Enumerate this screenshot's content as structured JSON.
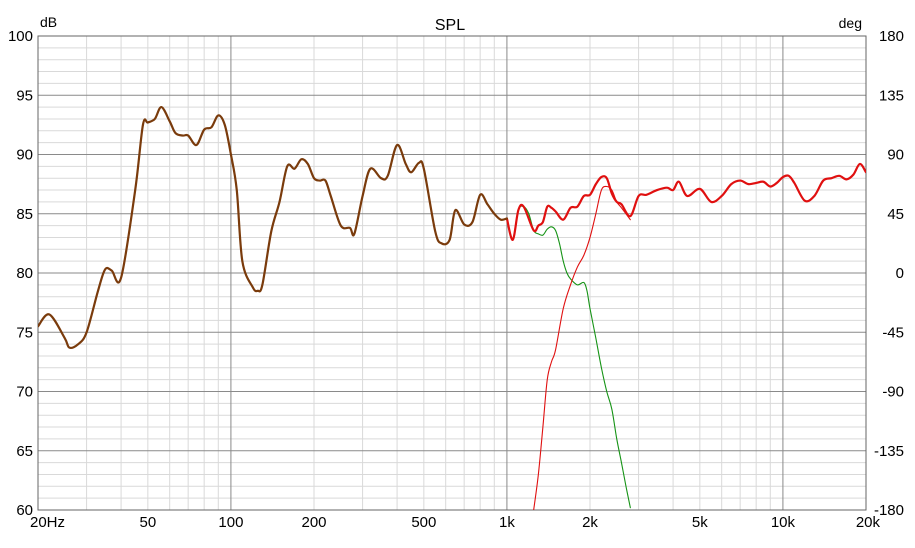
{
  "chart_data": {
    "type": "line",
    "title": "SPL",
    "ylabel_left": "dB",
    "ylabel_right": "deg",
    "x_scale": "log",
    "xlim": [
      20,
      20000
    ],
    "ylim": [
      60,
      100
    ],
    "ylim_right": [
      -180,
      180
    ],
    "grid": true,
    "x_ticks": [
      {
        "value": 20,
        "label": "20Hz"
      },
      {
        "value": 50,
        "label": "50"
      },
      {
        "value": 100,
        "label": "100"
      },
      {
        "value": 200,
        "label": "200"
      },
      {
        "value": 500,
        "label": "500"
      },
      {
        "value": 1000,
        "label": "1k"
      },
      {
        "value": 2000,
        "label": "2k"
      },
      {
        "value": 5000,
        "label": "5k"
      },
      {
        "value": 10000,
        "label": "10k"
      },
      {
        "value": 20000,
        "label": "20k"
      }
    ],
    "y_ticks_left": [
      "100",
      "95",
      "90",
      "85",
      "80",
      "75",
      "70",
      "65",
      "60"
    ],
    "y_ticks_right": [
      "180",
      "135",
      "90",
      "45",
      "0",
      "-45",
      "-90",
      "-135",
      "-180"
    ],
    "series": [
      {
        "color": "#7a3b0c",
        "x": [
          20,
          22,
          25,
          26,
          28,
          30,
          33,
          35,
          37,
          40,
          45,
          48,
          50,
          53,
          56,
          60,
          63,
          67,
          70,
          75,
          80,
          85,
          90,
          95,
          100,
          105,
          110,
          120,
          125,
          130,
          140,
          150,
          160,
          170,
          180,
          190,
          200,
          210,
          220,
          230,
          250,
          270,
          280,
          300,
          320,
          350,
          370,
          400,
          430,
          450,
          480,
          500,
          550,
          580,
          620,
          650,
          700,
          750,
          800,
          850,
          900,
          950,
          1000
        ],
        "y": [
          75.5,
          76.5,
          74.5,
          73.7,
          74,
          75,
          78.5,
          80.3,
          80.2,
          79.6,
          87,
          92.5,
          92.7,
          93,
          94,
          92.8,
          91.8,
          91.6,
          91.6,
          90.8,
          92.1,
          92.3,
          93.3,
          92.5,
          90,
          87,
          81,
          78.8,
          78.5,
          79,
          83.5,
          86,
          89,
          88.8,
          89.6,
          89.2,
          88,
          87.8,
          87.8,
          86.5,
          84,
          83.8,
          83.3,
          86.5,
          88.8,
          88,
          88.2,
          90.8,
          89.2,
          88.5,
          89.3,
          88.8,
          83.5,
          82.5,
          82.8,
          85.3,
          84.1,
          84.3,
          86.6,
          85.8,
          85,
          84.5,
          84.6
        ]
      },
      {
        "color": "#e01010",
        "x": [
          1000,
          1050,
          1100,
          1150,
          1250,
          1300,
          1350,
          1400,
          1450,
          1500,
          1600,
          1700,
          1800,
          1900,
          2000,
          2100,
          2200,
          2300,
          2400,
          2500,
          2600,
          2800,
          3000,
          3200,
          3500,
          3800,
          4000,
          4200,
          4500,
          5000,
          5500,
          6000,
          6500,
          7000,
          7500,
          8000,
          8500,
          9000,
          9500,
          10000,
          10500,
          11000,
          12000,
          13000,
          14000,
          15000,
          16000,
          17000,
          18000,
          19000,
          20000
        ],
        "y": [
          84.6,
          82.8,
          85.3,
          85.6,
          83.6,
          84,
          84.3,
          85.6,
          85.5,
          85.2,
          84.5,
          85.5,
          85.6,
          86.5,
          86.6,
          87.5,
          88.1,
          88,
          86.7,
          86,
          85.8,
          84.8,
          86.5,
          86.6,
          87,
          87.2,
          87,
          87.7,
          86.5,
          87.1,
          86,
          86.5,
          87.5,
          87.8,
          87.5,
          87.6,
          87.7,
          87.3,
          87.6,
          88.1,
          88.2,
          87.6,
          86.1,
          86.5,
          87.8,
          88,
          88.2,
          87.9,
          88.3,
          89.2,
          88.5
        ]
      },
      {
        "color": "#e01010",
        "x": [
          1250,
          1300,
          1350,
          1400,
          1450,
          1500,
          1600,
          1700,
          1800,
          1900,
          2000,
          2100,
          2200,
          2300,
          2400,
          2500,
          2600,
          2800
        ],
        "y": [
          60,
          63,
          67,
          71,
          72.5,
          73.5,
          77,
          79,
          80.5,
          81.5,
          83,
          85,
          87,
          87.3,
          87,
          86,
          85.5,
          84.5
        ]
      },
      {
        "color": "#159315",
        "x": [
          1000,
          1050,
          1100,
          1150,
          1200,
          1250,
          1300,
          1350,
          1400,
          1450,
          1500,
          1550,
          1600,
          1650,
          1700,
          1800,
          1900,
          1950,
          2000,
          2100,
          2200,
          2300,
          2400,
          2500,
          2600,
          2700,
          2800
        ],
        "y": [
          84.6,
          82.8,
          85.3,
          85.6,
          85,
          83.6,
          83.3,
          83.2,
          83.7,
          83.9,
          83.6,
          82.5,
          81,
          80,
          79.5,
          79,
          79.2,
          78.5,
          77,
          74.5,
          72,
          70,
          68.5,
          66,
          64,
          62,
          60.2
        ]
      }
    ]
  }
}
